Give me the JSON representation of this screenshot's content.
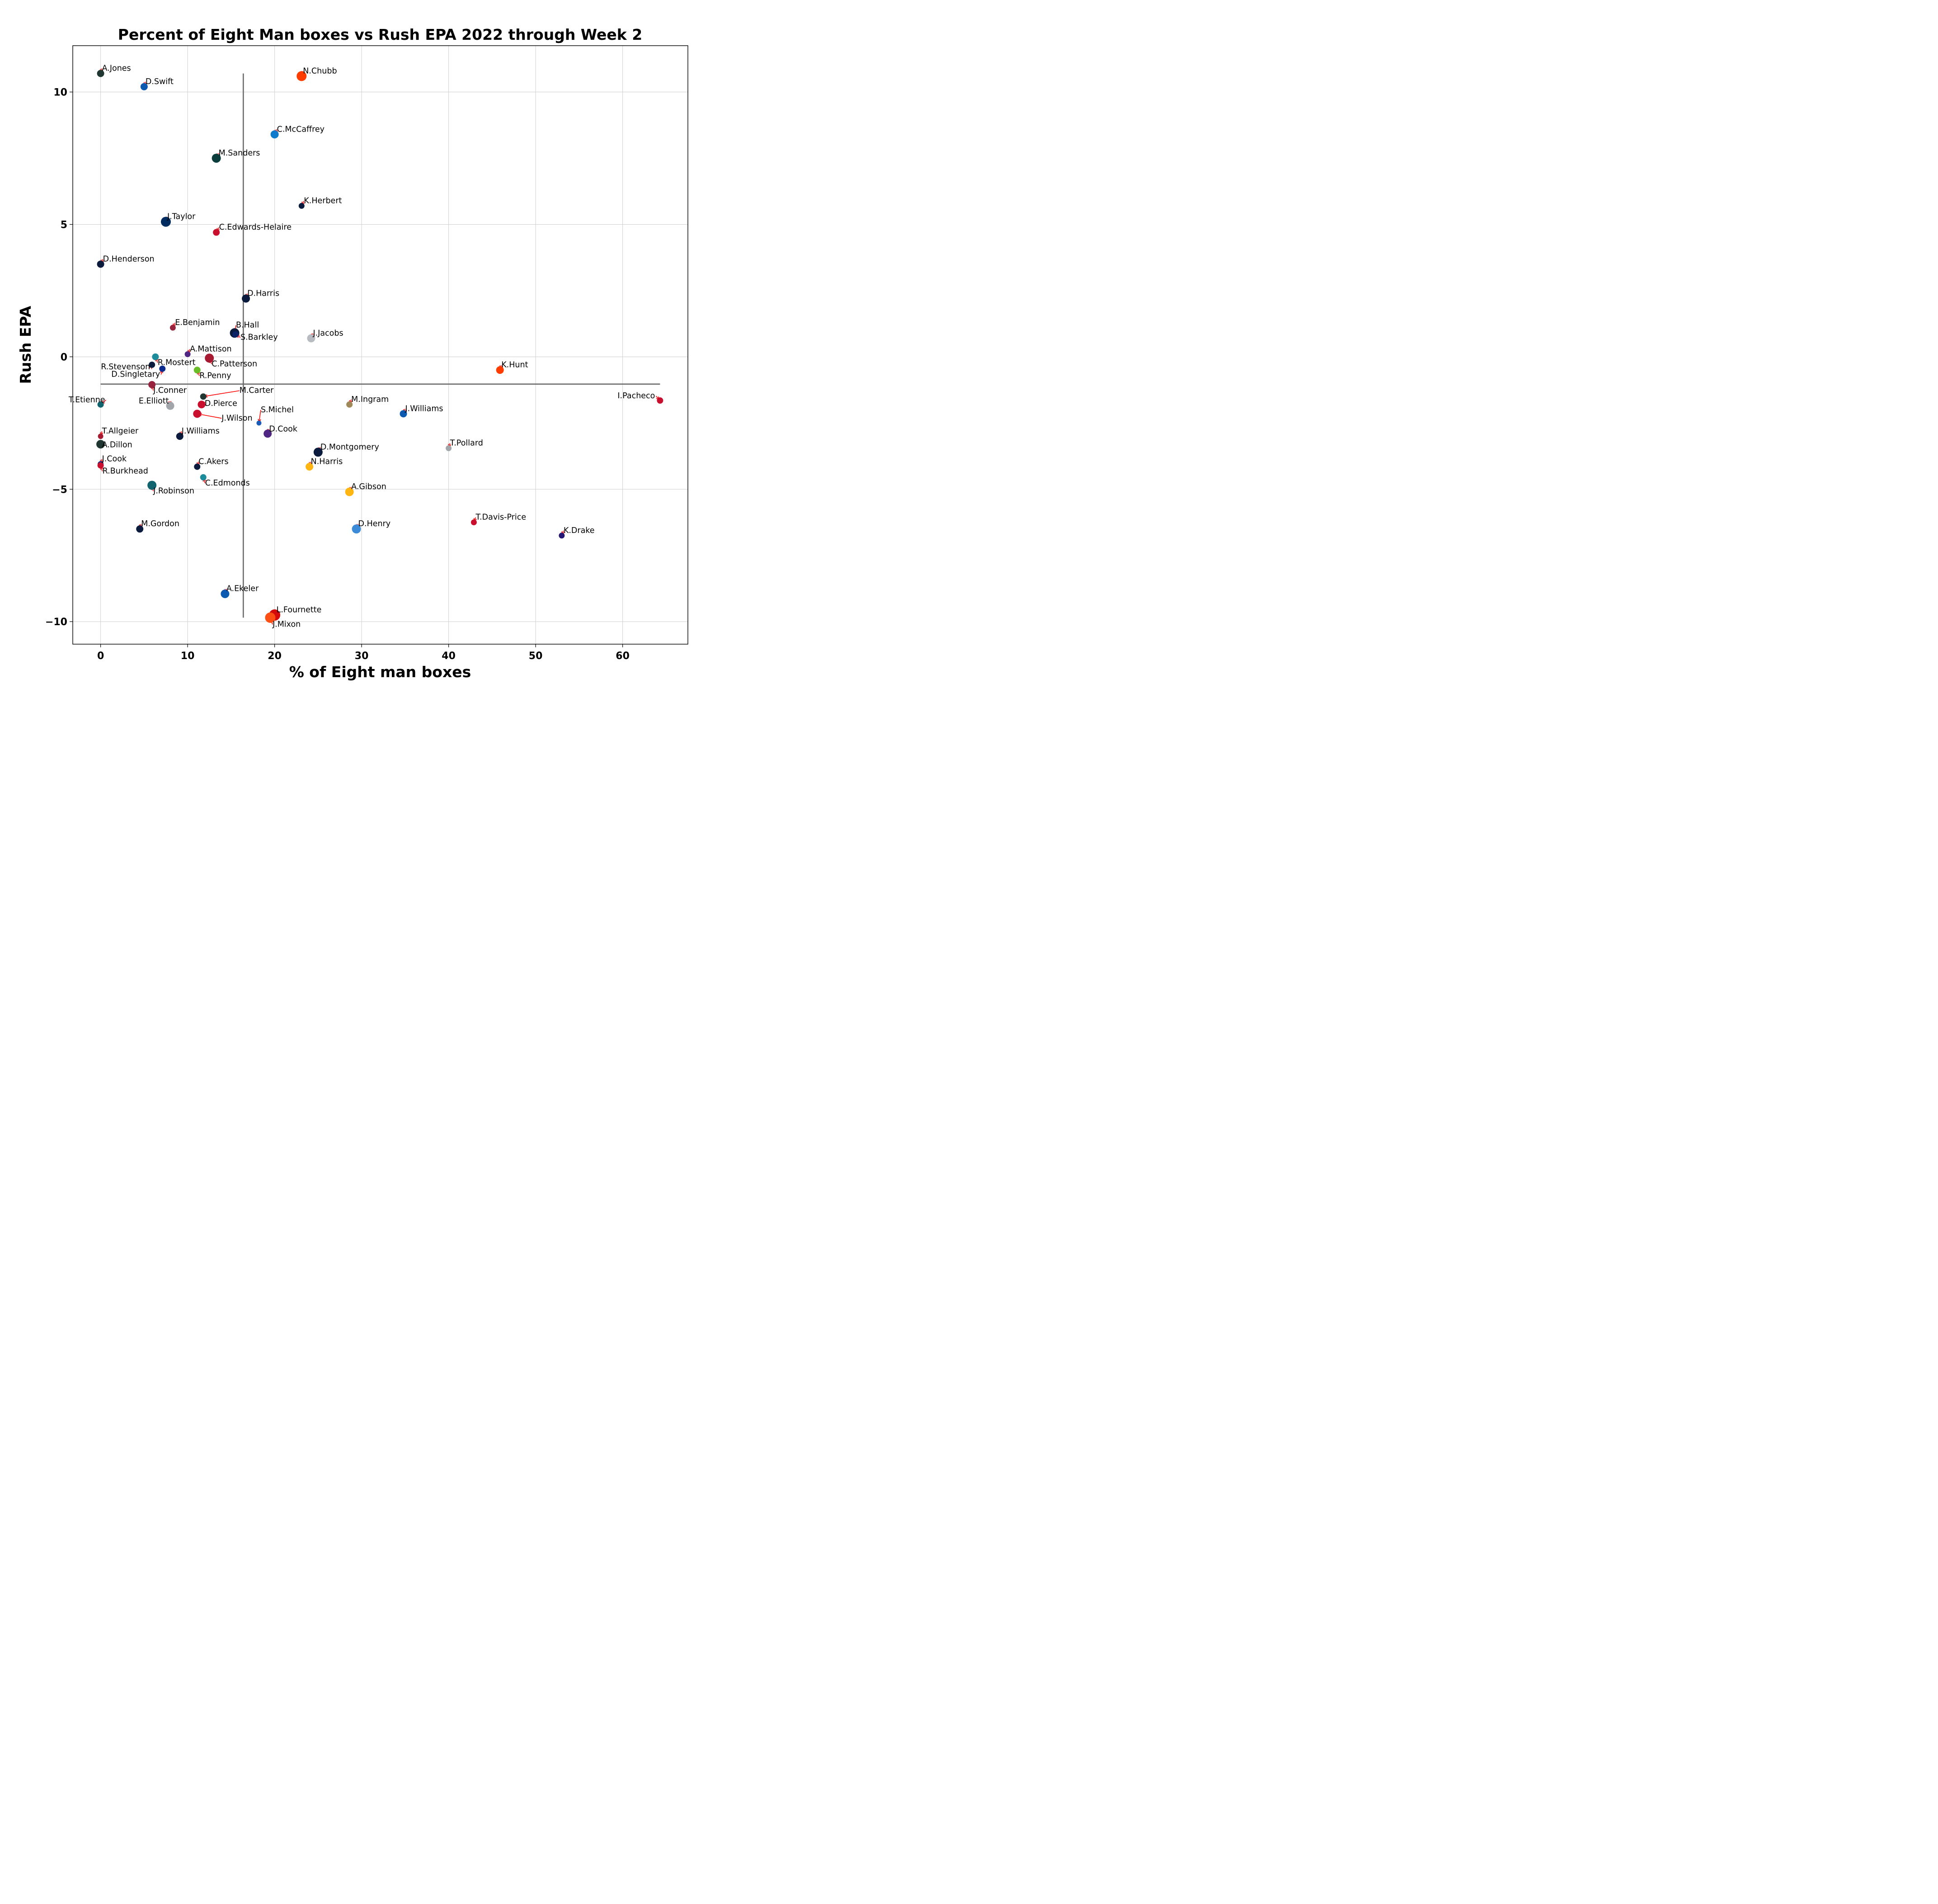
{
  "chart_data": {
    "type": "scatter",
    "title": "Percent of Eight Man boxes vs Rush EPA 2022 through Week 2",
    "xlabel": "% of Eight man boxes",
    "ylabel": "Rush EPA",
    "xlim": [
      -3.2,
      67.5
    ],
    "ylim": [
      -10.85,
      11.75
    ],
    "xticks": [
      0,
      10,
      20,
      30,
      40,
      50,
      60
    ],
    "yticks": [
      -10,
      -5,
      0,
      5,
      10
    ],
    "xtick_labels": [
      "0",
      "10",
      "20",
      "30",
      "40",
      "50",
      "60"
    ],
    "ytick_labels": [
      "−10",
      "−5",
      "0",
      "5",
      "10"
    ],
    "grid": true,
    "reference_lines": {
      "vertical_x": 16.4,
      "horizontal_y": -1.03
    },
    "points": [
      {
        "name": "A.Jones",
        "x": 0.0,
        "y": 10.7,
        "color": "#203731",
        "size": 8
      },
      {
        "name": "D.Swift",
        "x": 5.0,
        "y": 10.2,
        "color": "#0b5ab0",
        "size": 8
      },
      {
        "name": "N.Chubb",
        "x": 23.1,
        "y": 10.6,
        "color": "#fe3c00",
        "size": 11
      },
      {
        "name": "C.McCaffrey",
        "x": 20.0,
        "y": 8.4,
        "color": "#0f7bcc",
        "size": 9
      },
      {
        "name": "M.Sanders",
        "x": 13.3,
        "y": 7.5,
        "color": "#0b3d3d",
        "size": 10
      },
      {
        "name": "K.Herbert",
        "x": 23.1,
        "y": 5.7,
        "color": "#0b1b3d",
        "size": 6.5
      },
      {
        "name": "J.Taylor",
        "x": 7.5,
        "y": 5.1,
        "color": "#002c5f",
        "size": 11
      },
      {
        "name": "C.Edwards-Helaire",
        "x": 13.3,
        "y": 4.7,
        "color": "#c8102e",
        "size": 7.5
      },
      {
        "name": "D.Henderson",
        "x": 0.0,
        "y": 3.5,
        "color": "#0b1b3d",
        "size": 8
      },
      {
        "name": "D.Harris",
        "x": 16.7,
        "y": 2.2,
        "color": "#0b1b3d",
        "size": 9
      },
      {
        "name": "E.Benjamin",
        "x": 8.3,
        "y": 1.1,
        "color": "#97233f",
        "size": 6.5
      },
      {
        "name": "B.Hall",
        "x": 15.4,
        "y": 0.9,
        "color": "#0b1b3d",
        "size": 10.5
      },
      {
        "name": "S.Barkley",
        "x": 15.5,
        "y": 0.85,
        "color": "#0b2265",
        "size": 7
      },
      {
        "name": "J.Jacobs",
        "x": 24.2,
        "y": 0.7,
        "color": "#b8bcc2",
        "size": 9
      },
      {
        "name": "A.Mattison",
        "x": 10.0,
        "y": 0.1,
        "color": "#4f2683",
        "size": 6.5
      },
      {
        "name": "C.Patterson",
        "x": 12.5,
        "y": -0.05,
        "color": "#a71930",
        "size": 10
      },
      {
        "name": "R.Stevenson",
        "x": 5.9,
        "y": -0.3,
        "color": "#0b1b3d",
        "size": 7
      },
      {
        "name": "R.Mostert",
        "x": 6.3,
        "y": 0.0,
        "color": "#1c8c9a",
        "size": 7.5
      },
      {
        "name": "D.Singletary",
        "x": 7.1,
        "y": -0.45,
        "color": "#0b2b8f",
        "size": 7
      },
      {
        "name": "R.Penny",
        "x": 11.1,
        "y": -0.5,
        "color": "#69be28",
        "size": 7.5
      },
      {
        "name": "K.Hunt",
        "x": 45.9,
        "y": -0.5,
        "color": "#fe3c00",
        "size": 8.5
      },
      {
        "name": "J.Conner",
        "x": 5.9,
        "y": -1.05,
        "color": "#97233f",
        "size": 8
      },
      {
        "name": "M.Carter",
        "x": 11.8,
        "y": -1.5,
        "color": "#203731",
        "size": 7
      },
      {
        "name": "T.Etienne",
        "x": 0.0,
        "y": -1.8,
        "color": "#11636e",
        "size": 7
      },
      {
        "name": "E.Elliott",
        "x": 8.0,
        "y": -1.85,
        "color": "#a2a6ab",
        "size": 9
      },
      {
        "name": "D.Pierce",
        "x": 11.6,
        "y": -1.8,
        "color": "#c8102e",
        "size": 8.5
      },
      {
        "name": "M.Ingram",
        "x": 28.6,
        "y": -1.8,
        "color": "#9f8958",
        "size": 7
      },
      {
        "name": "I.Pacheco",
        "x": 64.3,
        "y": -1.65,
        "color": "#c8102e",
        "size": 7
      },
      {
        "name": "J.Williams",
        "x": 34.8,
        "y": -2.15,
        "color": "#0b5ab0",
        "size": 8
      },
      {
        "name": "J.Wilson",
        "x": 11.1,
        "y": -2.15,
        "color": "#c8102e",
        "size": 9
      },
      {
        "name": "S.Michel",
        "x": 18.2,
        "y": -2.5,
        "color": "#1a5cb8",
        "size": 5.5
      },
      {
        "name": "T.Allgeier",
        "x": 0.0,
        "y": -3.0,
        "color": "#a71930",
        "size": 6
      },
      {
        "name": "J.Williams",
        "x": 9.1,
        "y": -3.0,
        "color": "#0b1b3d",
        "size": 8
      },
      {
        "name": "D.Cook",
        "x": 19.2,
        "y": -2.9,
        "color": "#4f2683",
        "size": 9
      },
      {
        "name": "A.Dillon",
        "x": 0.0,
        "y": -3.3,
        "color": "#203731",
        "size": 9.5
      },
      {
        "name": "D.Montgomery",
        "x": 25.0,
        "y": -3.6,
        "color": "#0b1b3d",
        "size": 10
      },
      {
        "name": "T.Pollard",
        "x": 40.0,
        "y": -3.45,
        "color": "#a2a6ab",
        "size": 6.5
      },
      {
        "name": "J.Cook",
        "x": 0.0,
        "y": -4.05,
        "color": "#0b2b8f",
        "size": 6.5
      },
      {
        "name": "R.Burkhead",
        "x": 0.0,
        "y": -4.1,
        "color": "#c8102e",
        "size": 7
      },
      {
        "name": "C.Akers",
        "x": 11.1,
        "y": -4.15,
        "color": "#0b1b3d",
        "size": 7
      },
      {
        "name": "N.Harris",
        "x": 24.0,
        "y": -4.15,
        "color": "#ffb612",
        "size": 8.5
      },
      {
        "name": "C.Edmonds",
        "x": 11.8,
        "y": -4.55,
        "color": "#1c8c9a",
        "size": 7
      },
      {
        "name": "J.Robinson",
        "x": 5.9,
        "y": -4.85,
        "color": "#11636e",
        "size": 10
      },
      {
        "name": "A.Gibson",
        "x": 28.6,
        "y": -5.1,
        "color": "#ffb612",
        "size": 9.5
      },
      {
        "name": "M.Gordon",
        "x": 4.5,
        "y": -6.5,
        "color": "#0b1b3d",
        "size": 8
      },
      {
        "name": "D.Henry",
        "x": 29.4,
        "y": -6.5,
        "color": "#3b8bd8",
        "size": 10
      },
      {
        "name": "T.Davis-Price",
        "x": 42.9,
        "y": -6.25,
        "color": "#c8102e",
        "size": 6.5
      },
      {
        "name": "K.Drake",
        "x": 53.0,
        "y": -6.75,
        "color": "#241773",
        "size": 6.5
      },
      {
        "name": "A.Ekeler",
        "x": 14.3,
        "y": -8.95,
        "color": "#0b5ab0",
        "size": 9.5
      },
      {
        "name": "L.Fournette",
        "x": 20.0,
        "y": -9.75,
        "color": "#d50a0a",
        "size": 12.5
      },
      {
        "name": "J.Mixon",
        "x": 19.5,
        "y": -9.85,
        "color": "#fb4f14",
        "size": 11.5
      }
    ]
  }
}
